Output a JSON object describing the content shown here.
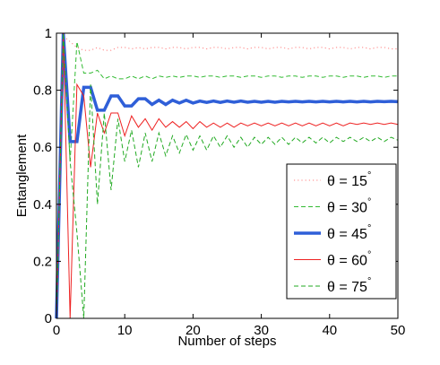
{
  "chart_data": {
    "type": "line",
    "title": "",
    "xlabel": "Number of steps",
    "ylabel": "Entanglement",
    "xlim": [
      0,
      50
    ],
    "ylim": [
      0,
      1
    ],
    "xticks": [
      0,
      10,
      20,
      30,
      40,
      50
    ],
    "yticks": [
      0,
      0.2,
      0.4,
      0.6,
      0.8,
      1
    ],
    "grid": false,
    "legend_position": "lower-right",
    "series": [
      {
        "name": "θ = 15°",
        "color": "#ff8080",
        "style": "dotted",
        "width": "thin",
        "x": [
          0,
          1,
          2,
          3,
          4,
          5,
          6,
          7,
          8,
          9,
          10,
          11,
          12,
          13,
          14,
          15,
          16,
          17,
          18,
          19,
          20,
          21,
          22,
          23,
          24,
          25,
          26,
          27,
          28,
          29,
          30,
          31,
          32,
          33,
          34,
          35,
          36,
          37,
          38,
          39,
          40,
          41,
          42,
          43,
          44,
          45,
          46,
          47,
          48,
          49,
          50
        ],
        "y": [
          0,
          0.99,
          0.97,
          0.95,
          0.94,
          0.94,
          0.95,
          0.94,
          0.94,
          0.95,
          0.95,
          0.945,
          0.95,
          0.945,
          0.95,
          0.95,
          0.945,
          0.95,
          0.95,
          0.945,
          0.95,
          0.95,
          0.945,
          0.95,
          0.95,
          0.945,
          0.95,
          0.95,
          0.945,
          0.95,
          0.95,
          0.945,
          0.95,
          0.95,
          0.945,
          0.95,
          0.95,
          0.945,
          0.95,
          0.95,
          0.945,
          0.95,
          0.95,
          0.945,
          0.95,
          0.95,
          0.945,
          0.95,
          0.95,
          0.945,
          0.945
        ]
      },
      {
        "name": "θ = 30°",
        "color": "#33bb33",
        "style": "dashed",
        "width": "thin",
        "x": [
          0,
          1,
          2,
          3,
          4,
          5,
          6,
          7,
          8,
          9,
          10,
          11,
          12,
          13,
          14,
          15,
          16,
          17,
          18,
          19,
          20,
          21,
          22,
          23,
          24,
          25,
          26,
          27,
          28,
          29,
          30,
          31,
          32,
          33,
          34,
          35,
          36,
          37,
          38,
          39,
          40,
          41,
          42,
          43,
          44,
          45,
          46,
          47,
          48,
          49,
          50
        ],
        "y": [
          0,
          0.98,
          0.55,
          0.97,
          0.86,
          0.86,
          0.87,
          0.84,
          0.85,
          0.84,
          0.84,
          0.85,
          0.84,
          0.85,
          0.84,
          0.85,
          0.845,
          0.85,
          0.845,
          0.85,
          0.85,
          0.845,
          0.85,
          0.85,
          0.845,
          0.85,
          0.85,
          0.845,
          0.85,
          0.85,
          0.845,
          0.85,
          0.85,
          0.845,
          0.85,
          0.85,
          0.845,
          0.85,
          0.85,
          0.845,
          0.85,
          0.85,
          0.845,
          0.85,
          0.85,
          0.845,
          0.85,
          0.85,
          0.845,
          0.85,
          0.85
        ]
      },
      {
        "name": "θ = 45°",
        "color": "#2f5fd8",
        "style": "solid",
        "width": "thick",
        "x": [
          0,
          1,
          2,
          3,
          4,
          5,
          6,
          7,
          8,
          9,
          10,
          11,
          12,
          13,
          14,
          15,
          16,
          17,
          18,
          19,
          20,
          21,
          22,
          23,
          24,
          25,
          26,
          27,
          28,
          29,
          30,
          31,
          32,
          33,
          34,
          35,
          36,
          37,
          38,
          39,
          40,
          41,
          42,
          43,
          44,
          45,
          46,
          47,
          48,
          49,
          50
        ],
        "y": [
          0,
          1.0,
          0.62,
          0.62,
          0.81,
          0.81,
          0.73,
          0.73,
          0.78,
          0.78,
          0.745,
          0.745,
          0.77,
          0.77,
          0.75,
          0.765,
          0.75,
          0.765,
          0.755,
          0.765,
          0.755,
          0.762,
          0.757,
          0.762,
          0.757,
          0.762,
          0.758,
          0.762,
          0.758,
          0.761,
          0.758,
          0.761,
          0.758,
          0.761,
          0.759,
          0.761,
          0.759,
          0.761,
          0.759,
          0.761,
          0.759,
          0.761,
          0.759,
          0.761,
          0.759,
          0.761,
          0.759,
          0.761,
          0.76,
          0.761,
          0.76
        ]
      },
      {
        "name": "θ = 60°",
        "color": "#ee2222",
        "style": "solid",
        "width": "thin",
        "x": [
          0,
          1,
          2,
          3,
          4,
          5,
          6,
          7,
          8,
          9,
          10,
          11,
          12,
          13,
          14,
          15,
          16,
          17,
          18,
          19,
          20,
          21,
          22,
          23,
          24,
          25,
          26,
          27,
          28,
          29,
          30,
          31,
          32,
          33,
          34,
          35,
          36,
          37,
          38,
          39,
          40,
          41,
          42,
          43,
          44,
          45,
          46,
          47,
          48,
          49,
          50
        ],
        "y": [
          0,
          1.0,
          0.0,
          0.82,
          0.78,
          0.53,
          0.72,
          0.65,
          0.72,
          0.72,
          0.64,
          0.71,
          0.67,
          0.7,
          0.66,
          0.7,
          0.67,
          0.69,
          0.67,
          0.69,
          0.665,
          0.69,
          0.67,
          0.685,
          0.67,
          0.685,
          0.67,
          0.685,
          0.675,
          0.685,
          0.675,
          0.685,
          0.675,
          0.685,
          0.675,
          0.685,
          0.675,
          0.685,
          0.675,
          0.685,
          0.675,
          0.685,
          0.675,
          0.685,
          0.68,
          0.685,
          0.68,
          0.685,
          0.68,
          0.685,
          0.68
        ]
      },
      {
        "name": "θ = 75°",
        "color": "#22aa22",
        "style": "dashed",
        "width": "thin",
        "x": [
          0,
          1,
          2,
          3,
          4,
          5,
          6,
          7,
          8,
          9,
          10,
          11,
          12,
          13,
          14,
          15,
          16,
          17,
          18,
          19,
          20,
          21,
          22,
          23,
          24,
          25,
          26,
          27,
          28,
          29,
          30,
          31,
          32,
          33,
          34,
          35,
          36,
          37,
          38,
          39,
          40,
          41,
          42,
          43,
          44,
          45,
          46,
          47,
          48,
          49,
          50
        ],
        "y": [
          0,
          1.0,
          0.55,
          0.3,
          0.0,
          0.82,
          0.4,
          0.72,
          0.45,
          0.7,
          0.55,
          0.66,
          0.53,
          0.65,
          0.55,
          0.65,
          0.57,
          0.64,
          0.58,
          0.645,
          0.59,
          0.64,
          0.59,
          0.64,
          0.6,
          0.64,
          0.6,
          0.635,
          0.6,
          0.635,
          0.61,
          0.635,
          0.61,
          0.635,
          0.61,
          0.635,
          0.615,
          0.635,
          0.615,
          0.635,
          0.615,
          0.635,
          0.62,
          0.635,
          0.62,
          0.635,
          0.62,
          0.635,
          0.62,
          0.635,
          0.625
        ]
      }
    ]
  }
}
